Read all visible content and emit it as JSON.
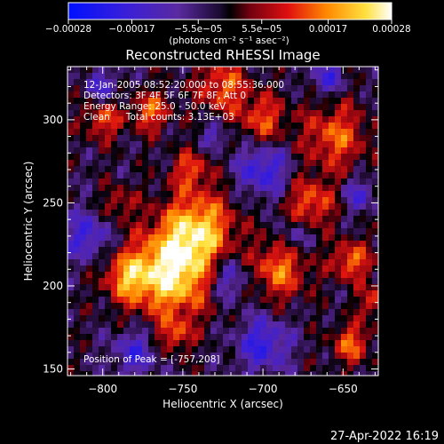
{
  "chart_data": {
    "type": "heatmap",
    "title": "Reconstructed RHESSI Image",
    "xlabel": "Heliocentric X (arcsec)",
    "ylabel": "Heliocentric Y (arcsec)",
    "xlim": [
      -822,
      -628
    ],
    "ylim": [
      146,
      332
    ],
    "x_ticks": [
      -800,
      -750,
      -700,
      -650
    ],
    "x_tick_labels": [
      "−800",
      "−750",
      "−700",
      "−650"
    ],
    "y_ticks": [
      150,
      200,
      250,
      300
    ],
    "y_tick_labels": [
      "150",
      "200",
      "250",
      "300"
    ],
    "colorbar": {
      "colormap": "blue-black-red-yellow-white",
      "range": [
        -0.00028,
        0.00028
      ],
      "ticks": [
        -0.00028,
        -0.00017,
        -5.5e-05,
        5.5e-05,
        0.00017,
        0.00028
      ],
      "tick_labels": [
        "−0.00028",
        "−0.00017",
        "−5.5e−05",
        "5.5e−05",
        "0.00017",
        "0.00028"
      ],
      "units_label": "(photons cm⁻² s⁻¹ asec⁻²)"
    },
    "annotations": {
      "time_range": "12-Jan-2005 08:52:20.000 to 08:55:36.000",
      "detectors": "Detectors: 3F 4F 5F 6F 7F 8F, Att 0",
      "energy_range": "Energy Range: 25.0 - 50.0 keV",
      "clean_label": "Clean",
      "total_counts": "Total counts: 3.13E+03",
      "peak_position": "Position of Peak = [-757,208]"
    },
    "peak": [
      -757,
      208
    ],
    "grid": false
  },
  "footer": {
    "timestamp": "27-Apr-2022 16:19"
  }
}
